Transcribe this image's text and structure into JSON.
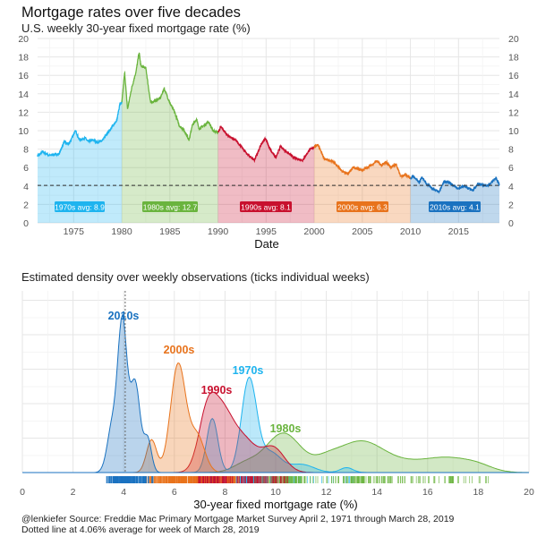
{
  "title": "Mortgage rates over five decades",
  "subtitle": "U.S. weekly 30-year fixed mortgage rate (%)",
  "colors": {
    "1970s": "#1eb4ef",
    "1980s": "#6ab43e",
    "1990s": "#c8102e",
    "2000s": "#e8731c",
    "2010s": "#1a72c0"
  },
  "chart_data": [
    {
      "type": "area",
      "title": "U.S. weekly 30-year fixed mortgage rate (%)",
      "xlabel": "Date",
      "ylabel": "",
      "xlim": [
        1971.25,
        2019.25
      ],
      "ylim": [
        0,
        20
      ],
      "x_ticks": [
        "1975",
        "1980",
        "1985",
        "1990",
        "1995",
        "2000",
        "2005",
        "2010",
        "2015"
      ],
      "y_ticks": [
        "0",
        "2",
        "4",
        "6",
        "8",
        "10",
        "12",
        "14",
        "16",
        "18",
        "20"
      ],
      "reference_line": 4.06,
      "decade_breaks": [
        1980,
        1990,
        2000,
        2010
      ],
      "averages": [
        {
          "decade": "1970s",
          "label": "1970s avg: 8.9",
          "value": 8.9
        },
        {
          "decade": "1980s",
          "label": "1980s avg: 12.7",
          "value": 12.7
        },
        {
          "decade": "1990s",
          "label": "1990s avg: 8.1",
          "value": 8.1
        },
        {
          "decade": "2000s",
          "label": "2000s avg: 6.3",
          "value": 6.3
        },
        {
          "decade": "2010s",
          "label": "2010s avg: 4.1",
          "value": 4.1
        }
      ],
      "series_approx": [
        [
          1971.25,
          7.3
        ],
        [
          1971.8,
          7.7
        ],
        [
          1972.5,
          7.3
        ],
        [
          1973.5,
          7.5
        ],
        [
          1974,
          8.8
        ],
        [
          1974.5,
          8.5
        ],
        [
          1974.8,
          9.2
        ],
        [
          1975.2,
          10.0
        ],
        [
          1975.6,
          9.0
        ],
        [
          1976.2,
          9.2
        ],
        [
          1976.5,
          8.8
        ],
        [
          1977,
          9.0
        ],
        [
          1977.5,
          8.7
        ],
        [
          1978,
          9.0
        ],
        [
          1978.5,
          9.7
        ],
        [
          1979,
          10.4
        ],
        [
          1979.5,
          11.2
        ],
        [
          1979.8,
          12.9
        ],
        [
          1980,
          13.0
        ],
        [
          1980.3,
          16.3
        ],
        [
          1980.6,
          12.3
        ],
        [
          1981,
          14.5
        ],
        [
          1981.5,
          16.5
        ],
        [
          1981.8,
          18.5
        ],
        [
          1982,
          17.0
        ],
        [
          1982.5,
          16.8
        ],
        [
          1983,
          13.0
        ],
        [
          1983.5,
          13.3
        ],
        [
          1984,
          13.5
        ],
        [
          1984.4,
          14.6
        ],
        [
          1985,
          13.0
        ],
        [
          1985.5,
          12.0
        ],
        [
          1986,
          10.5
        ],
        [
          1986.5,
          10.0
        ],
        [
          1987,
          9.0
        ],
        [
          1987.3,
          10.5
        ],
        [
          1987.8,
          11.3
        ],
        [
          1988,
          10.2
        ],
        [
          1988.5,
          10.5
        ],
        [
          1989,
          11.0
        ],
        [
          1989.5,
          10.0
        ],
        [
          1990,
          9.8
        ],
        [
          1990.3,
          10.4
        ],
        [
          1991,
          9.5
        ],
        [
          1992,
          8.8
        ],
        [
          1993,
          7.5
        ],
        [
          1993.8,
          6.8
        ],
        [
          1994.5,
          8.5
        ],
        [
          1994.9,
          9.2
        ],
        [
          1995.5,
          7.8
        ],
        [
          1996,
          7.1
        ],
        [
          1996.5,
          8.3
        ],
        [
          1997,
          7.8
        ],
        [
          1998,
          7.0
        ],
        [
          1998.8,
          6.8
        ],
        [
          1999.5,
          7.9
        ],
        [
          2000.4,
          8.5
        ],
        [
          2001,
          7.0
        ],
        [
          2002,
          6.6
        ],
        [
          2003,
          5.5
        ],
        [
          2003.5,
          5.3
        ],
        [
          2004,
          6.0
        ],
        [
          2005,
          5.7
        ],
        [
          2006,
          6.3
        ],
        [
          2006.5,
          6.7
        ],
        [
          2007,
          6.2
        ],
        [
          2007.5,
          6.6
        ],
        [
          2008,
          6.0
        ],
        [
          2008.5,
          6.4
        ],
        [
          2009,
          5.0
        ],
        [
          2009.5,
          5.3
        ],
        [
          2010,
          4.8
        ],
        [
          2010.3,
          5.1
        ],
        [
          2010.9,
          4.4
        ],
        [
          2011.2,
          4.9
        ],
        [
          2011.8,
          4.1
        ],
        [
          2012.5,
          3.6
        ],
        [
          2013,
          3.4
        ],
        [
          2013.5,
          4.5
        ],
        [
          2014,
          4.4
        ],
        [
          2015,
          3.7
        ],
        [
          2015.5,
          4.0
        ],
        [
          2016.5,
          3.5
        ],
        [
          2017,
          4.2
        ],
        [
          2018,
          4.0
        ],
        [
          2018.9,
          4.9
        ],
        [
          2019.25,
          4.1
        ]
      ]
    },
    {
      "type": "area",
      "title": "Estimated density over weekly observations (ticks individual weeks)",
      "xlabel": "30-year fixed mortgage rate (%)",
      "xlim": [
        0,
        20
      ],
      "x_ticks": [
        "0",
        "2",
        "4",
        "6",
        "8",
        "10",
        "12",
        "14",
        "16",
        "18",
        "20"
      ],
      "reference_line": 4.06,
      "density_components_approx": {
        "1980s": [
          [
            10.3,
            0.7,
            0.24
          ],
          [
            13.3,
            0.9,
            0.18
          ],
          [
            16.8,
            0.9,
            0.08
          ],
          [
            15,
            1.0,
            0.05
          ],
          [
            12,
            0.5,
            0.05
          ],
          [
            18,
            0.6,
            0.03
          ],
          [
            8.8,
            0.5,
            0.05
          ]
        ],
        "1970s": [
          [
            7.5,
            0.22,
            0.33
          ],
          [
            8.95,
            0.3,
            0.57
          ],
          [
            9.8,
            0.4,
            0.12
          ],
          [
            11,
            0.5,
            0.05
          ],
          [
            12.8,
            0.25,
            0.03
          ]
        ],
        "1990s": [
          [
            7.3,
            0.35,
            0.35
          ],
          [
            7.9,
            0.4,
            0.3
          ],
          [
            8.7,
            0.5,
            0.2
          ],
          [
            9.9,
            0.45,
            0.15
          ]
        ],
        "2000s": [
          [
            6.15,
            0.3,
            0.66
          ],
          [
            5.1,
            0.2,
            0.2
          ],
          [
            6.9,
            0.3,
            0.22
          ]
        ],
        "2010s": [
          [
            3.95,
            0.18,
            0.9
          ],
          [
            4.45,
            0.2,
            0.55
          ],
          [
            4.95,
            0.15,
            0.2
          ],
          [
            3.55,
            0.2,
            0.28
          ]
        ]
      },
      "labels": [
        {
          "decade": "2010s",
          "text": "2010s"
        },
        {
          "decade": "2000s",
          "text": "2000s"
        },
        {
          "decade": "1970s",
          "text": "1970s"
        },
        {
          "decade": "1990s",
          "text": "1990s"
        },
        {
          "decade": "1980s",
          "text": "1980s"
        }
      ]
    }
  ],
  "caption_line1": "@lenkiefer Source: Freddie Mac Primary Mortgage Market Survey April 2, 1971 through March 28, 2019",
  "caption_line2": "Dotted line at 4.06% average for week of March 28, 2019"
}
